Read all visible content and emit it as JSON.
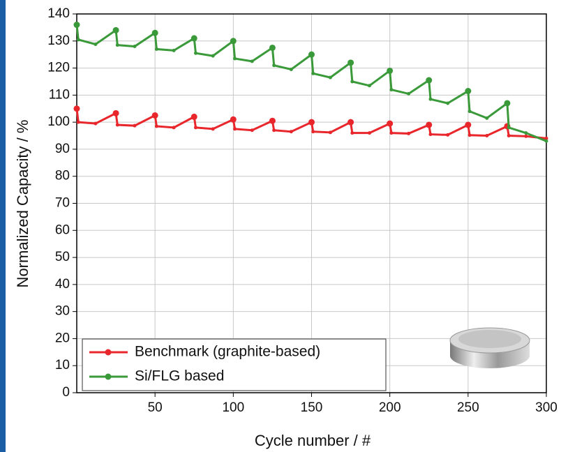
{
  "chart_data": {
    "type": "line",
    "x_label": "Cycle number / #",
    "y_label": "Normalized Capacity / %",
    "x": [
      0,
      1,
      12,
      25,
      26,
      37,
      50,
      51,
      62,
      75,
      76,
      87,
      100,
      101,
      112,
      125,
      126,
      137,
      150,
      151,
      162,
      175,
      176,
      187,
      200,
      201,
      212,
      225,
      226,
      237,
      250,
      251,
      262,
      275,
      276,
      287,
      300
    ],
    "series": [
      {
        "name": "Benchmark (graphite-based)",
        "color": "#e8262b",
        "values": [
          105,
          100,
          99.5,
          103.3,
          99,
          98.7,
          102.5,
          98.5,
          98,
          102,
          98,
          97.5,
          101,
          97.5,
          97,
          100.5,
          97,
          96.5,
          100,
          96.5,
          96.2,
          100,
          96,
          96,
          99.5,
          96,
          95.8,
          99,
          95.5,
          95.3,
          99,
          95.2,
          95,
          98.5,
          95,
          94.8,
          94
        ]
      },
      {
        "name": "Si/FLG based",
        "color": "#3a9a3a",
        "values": [
          136,
          130.5,
          128.8,
          134,
          128.5,
          128,
          133,
          127,
          126.5,
          131,
          125.5,
          124.5,
          130,
          123.5,
          122.5,
          127.5,
          121,
          119.5,
          125,
          118,
          116.5,
          122,
          115,
          113.5,
          119,
          112,
          110.5,
          115.5,
          108.5,
          107,
          111.5,
          104,
          101.5,
          107,
          98,
          96,
          93
        ]
      }
    ],
    "xlim": [
      0,
      300
    ],
    "xticks": [
      50,
      100,
      150,
      200,
      250,
      300
    ],
    "ylim": [
      0,
      140
    ],
    "yticks": [
      0,
      10,
      20,
      30,
      40,
      50,
      60,
      70,
      80,
      90,
      100,
      110,
      120,
      130,
      140
    ],
    "grid": true,
    "legend": "lower left"
  }
}
